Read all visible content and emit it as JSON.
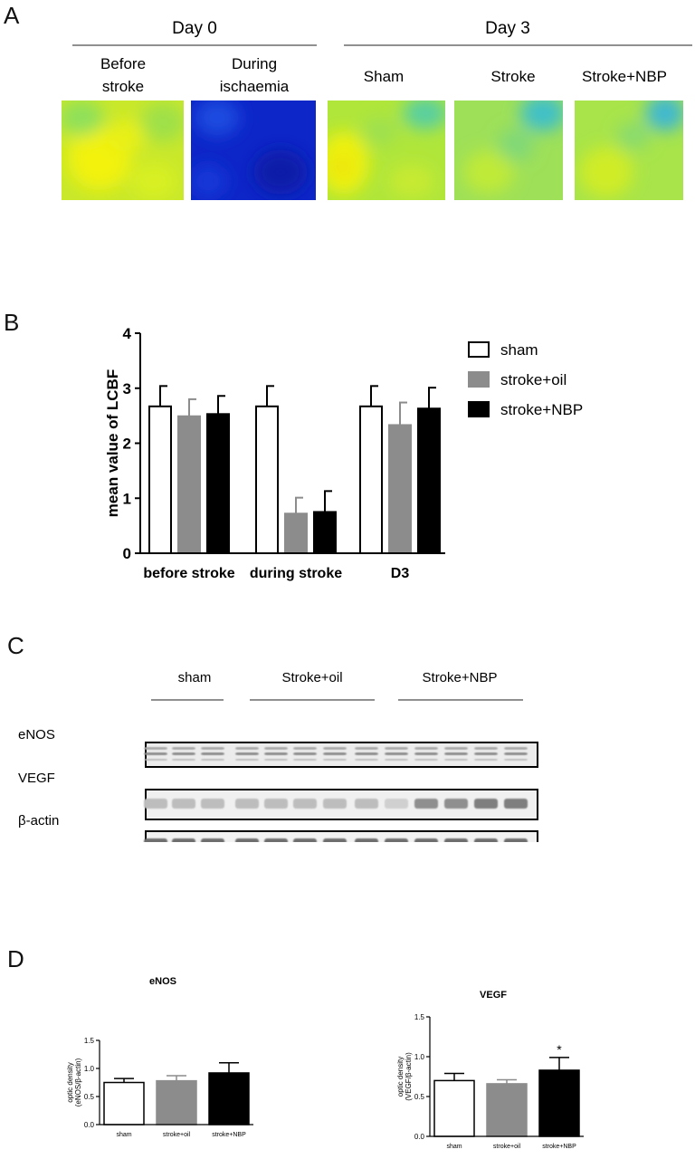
{
  "panel_a": {
    "letter": "A",
    "day0": "Day 0",
    "day3": "Day 3",
    "images": [
      {
        "label_line1": "Before",
        "label_line2": "stroke",
        "palette": "yellow"
      },
      {
        "label_line1": "During",
        "label_line2": "ischaemia",
        "palette": "blue"
      },
      {
        "label_line1": "Sham",
        "label_line2": "",
        "palette": "yellow-green"
      },
      {
        "label_line1": "Stroke",
        "label_line2": "",
        "palette": "green"
      },
      {
        "label_line1": "Stroke+NBP",
        "label_line2": "",
        "palette": "green"
      }
    ]
  },
  "panel_b": {
    "letter": "B",
    "chart_data": {
      "type": "bar",
      "categories": [
        "before stroke",
        "during stroke",
        "D3"
      ],
      "series": [
        {
          "name": "sham",
          "values": [
            2.67,
            2.67,
            2.67
          ],
          "errors": [
            0.37,
            0.37,
            0.37
          ],
          "color": "#ffffff"
        },
        {
          "name": "stroke+oil",
          "values": [
            2.49,
            0.72,
            2.33
          ],
          "errors": [
            0.31,
            0.29,
            0.41
          ],
          "color": "#8c8c8c"
        },
        {
          "name": "stroke+NBP",
          "values": [
            2.53,
            0.75,
            2.63
          ],
          "errors": [
            0.33,
            0.38,
            0.38
          ],
          "color": "#000000"
        }
      ],
      "title": "",
      "xlabel": "",
      "ylabel": "mean value of LCBF",
      "ylim": [
        0,
        4
      ],
      "yticks": [
        "0",
        "1",
        "2",
        "3",
        "4"
      ],
      "legend_position": "right"
    }
  },
  "panel_c": {
    "letter": "C",
    "groups": [
      "sham",
      "Stroke+oil",
      "Stroke+NBP"
    ],
    "rows": [
      "eNOS",
      "VEGF",
      "β-actin"
    ]
  },
  "panel_d": {
    "letter": "D",
    "chart_data": [
      {
        "type": "bar",
        "title": "eNOS",
        "categories": [
          "sham",
          "stroke+oil",
          "stroke+NBP"
        ],
        "values": [
          0.75,
          0.78,
          0.92
        ],
        "errors": [
          0.07,
          0.09,
          0.18
        ],
        "colors": [
          "#ffffff",
          "#8c8c8c",
          "#000000"
        ],
        "ylabel_line1": "optic density",
        "ylabel_line2": "(eNOS/β-actin)",
        "ylim": [
          0,
          1.5
        ],
        "yticks": [
          "0.0",
          "0.5",
          "1.0",
          "1.5"
        ],
        "annotations": []
      },
      {
        "type": "bar",
        "title": "VEGF",
        "categories": [
          "sham",
          "stroke+oil",
          "stroke+NBP"
        ],
        "values": [
          0.7,
          0.66,
          0.83
        ],
        "errors": [
          0.09,
          0.05,
          0.16
        ],
        "colors": [
          "#ffffff",
          "#8c8c8c",
          "#000000"
        ],
        "ylabel_line1": "optic density",
        "ylabel_line2": "(VEGF/β-actin)",
        "ylim": [
          0,
          1.5
        ],
        "yticks": [
          "0.0",
          "0.5",
          "1.0",
          "1.5"
        ],
        "annotations": [
          "",
          "",
          "*"
        ]
      }
    ]
  }
}
